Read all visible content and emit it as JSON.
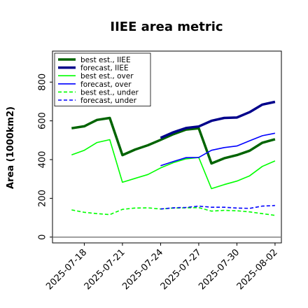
{
  "chart_data": {
    "type": "line",
    "title": "IIEE area metric",
    "xlabel": "",
    "ylabel": "Area (1000km2)",
    "ylim": [
      -30,
      960
    ],
    "yticks": [
      0,
      200,
      400,
      600,
      800
    ],
    "xticks": [
      "2025-07-18",
      "2025-07-21",
      "2025-07-24",
      "2025-07-27",
      "2025-07-30",
      "2025-08-02"
    ],
    "highlight_xtick": "2025-07-24",
    "highlight_color": "#228b22",
    "xlim": [
      "2025-07-15T12:00",
      "2025-08-02T12:00"
    ],
    "grid": false,
    "legend_position": "upper-left",
    "hline": 0,
    "series": [
      {
        "name": "best est., IIEE",
        "color": "#006400",
        "style": "solid",
        "width": 3.5,
        "x": [
          "2025-07-17",
          "2025-07-18",
          "2025-07-19",
          "2025-07-20",
          "2025-07-21",
          "2025-07-22",
          "2025-07-23",
          "2025-07-24",
          "2025-07-25",
          "2025-07-26",
          "2025-07-27",
          "2025-07-28",
          "2025-07-29",
          "2025-07-30",
          "2025-07-31",
          "2025-08-01",
          "2025-08-02"
        ],
        "values": [
          562,
          572,
          605,
          615,
          423,
          452,
          474,
          502,
          531,
          555,
          562,
          380,
          407,
          423,
          446,
          487,
          505
        ]
      },
      {
        "name": "forecast, IIEE",
        "color": "#00008b",
        "style": "solid",
        "width": 3.5,
        "x": [
          "2025-07-24",
          "2025-07-25",
          "2025-07-26",
          "2025-07-27",
          "2025-07-28",
          "2025-07-29",
          "2025-07-30",
          "2025-07-31",
          "2025-08-01",
          "2025-08-02"
        ],
        "values": [
          512,
          541,
          563,
          571,
          600,
          615,
          617,
          645,
          684,
          698
        ]
      },
      {
        "name": "best est., over",
        "color": "#00ff00",
        "style": "solid",
        "width": 1.6,
        "x": [
          "2025-07-17",
          "2025-07-18",
          "2025-07-19",
          "2025-07-20",
          "2025-07-21",
          "2025-07-22",
          "2025-07-23",
          "2025-07-24",
          "2025-07-25",
          "2025-07-26",
          "2025-07-27",
          "2025-07-28",
          "2025-07-29",
          "2025-07-30",
          "2025-07-31",
          "2025-08-01",
          "2025-08-02"
        ],
        "values": [
          424,
          448,
          488,
          503,
          283,
          303,
          323,
          357,
          384,
          404,
          411,
          250,
          271,
          289,
          316,
          365,
          393
        ]
      },
      {
        "name": "forecast, over",
        "color": "#0000ff",
        "style": "solid",
        "width": 1.6,
        "x": [
          "2025-07-24",
          "2025-07-25",
          "2025-07-26",
          "2025-07-27",
          "2025-07-28",
          "2025-07-29",
          "2025-07-30",
          "2025-07-31",
          "2025-08-01",
          "2025-08-02"
        ],
        "values": [
          368,
          390,
          410,
          411,
          448,
          462,
          470,
          497,
          523,
          536
        ]
      },
      {
        "name": "best est., under",
        "color": "#00ff00",
        "style": "dashed",
        "width": 1.6,
        "x": [
          "2025-07-17",
          "2025-07-18",
          "2025-07-19",
          "2025-07-20",
          "2025-07-21",
          "2025-07-22",
          "2025-07-23",
          "2025-07-24",
          "2025-07-25",
          "2025-07-26",
          "2025-07-27",
          "2025-07-28",
          "2025-07-29",
          "2025-07-30",
          "2025-07-31",
          "2025-08-01",
          "2025-08-02"
        ],
        "values": [
          140,
          128,
          121,
          116,
          143,
          150,
          151,
          145,
          150,
          151,
          152,
          134,
          138,
          136,
          130,
          121,
          112
        ]
      },
      {
        "name": "forecast, under",
        "color": "#0000ff",
        "style": "dashed",
        "width": 1.6,
        "x": [
          "2025-07-24",
          "2025-07-25",
          "2025-07-26",
          "2025-07-27",
          "2025-07-28",
          "2025-07-29",
          "2025-07-30",
          "2025-07-31",
          "2025-08-01",
          "2025-08-02"
        ],
        "values": [
          145,
          151,
          153,
          160,
          154,
          154,
          150,
          148,
          160,
          163
        ]
      }
    ]
  }
}
